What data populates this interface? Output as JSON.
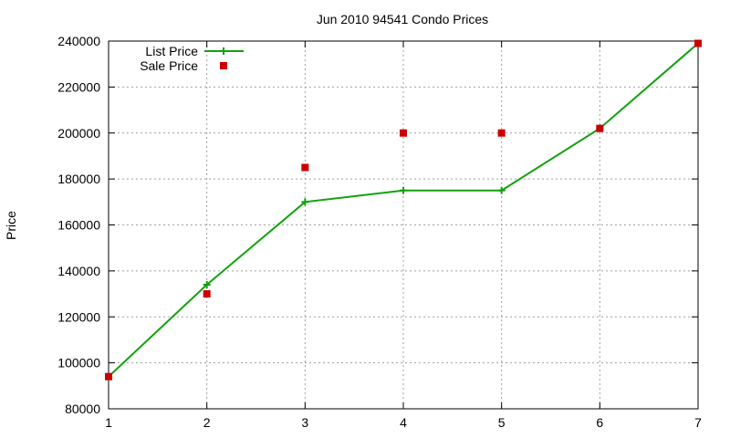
{
  "chart_data": {
    "type": "line",
    "title": "Jun 2010 94541 Condo Prices",
    "xlabel": "",
    "ylabel": "Price",
    "xlim": [
      1,
      7
    ],
    "ylim": [
      80000,
      240000
    ],
    "xticks": [
      "1",
      "2",
      "3",
      "4",
      "5",
      "6",
      "7"
    ],
    "yticks": [
      "80000",
      "100000",
      "120000",
      "140000",
      "160000",
      "180000",
      "200000",
      "220000",
      "240000"
    ],
    "grid": true,
    "legend_position": "top-left",
    "series": [
      {
        "name": "List Price",
        "style": "line+cross",
        "color": "#13a10e",
        "x": [
          1,
          2,
          3,
          4,
          5,
          6,
          7
        ],
        "values": [
          94000,
          134000,
          170000,
          175000,
          175000,
          202000,
          239000
        ]
      },
      {
        "name": "Sale Price",
        "style": "square-points",
        "color": "#cc0000",
        "x": [
          1,
          2,
          3,
          4,
          5,
          6,
          7
        ],
        "values": [
          94000,
          130000,
          185000,
          200000,
          200000,
          202000,
          239000
        ]
      }
    ]
  }
}
